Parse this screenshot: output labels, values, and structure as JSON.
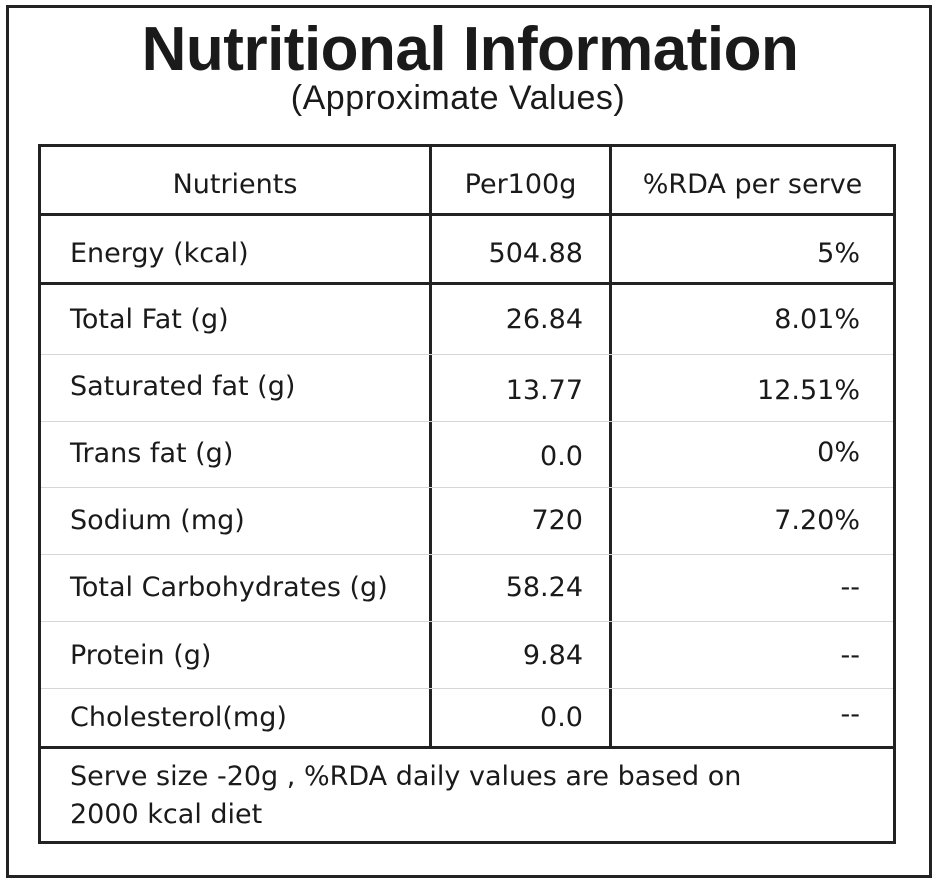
{
  "title": "Nutritional Information",
  "subtitle": "(Approximate Values)",
  "table": {
    "headers": [
      "Nutrients",
      "Per100g",
      "%RDA per serve"
    ],
    "rows": [
      {
        "nutrient": "Energy (kcal)",
        "per100g": "504.88",
        "rda": "5%"
      },
      {
        "nutrient": "Total Fat (g)",
        "per100g": "26.84",
        "rda": "8.01%"
      },
      {
        "nutrient": "Saturated fat (g)",
        "per100g": "13.77",
        "rda": "12.51%"
      },
      {
        "nutrient": "Trans fat (g)",
        "per100g": "0.0",
        "rda": "0%"
      },
      {
        "nutrient": "Sodium (mg)",
        "per100g": "720",
        "rda": "7.20%"
      },
      {
        "nutrient": "Total Carbohydrates (g)",
        "per100g": "58.24",
        "rda": "--"
      },
      {
        "nutrient": "Protein (g)",
        "per100g": "9.84",
        "rda": "--"
      },
      {
        "nutrient": "Cholesterol(mg)",
        "per100g": "0.0",
        "rda": "--"
      }
    ]
  },
  "footer_line1": "Serve size -20g , %RDA daily values are based on",
  "footer_line2": "2000 kcal diet"
}
